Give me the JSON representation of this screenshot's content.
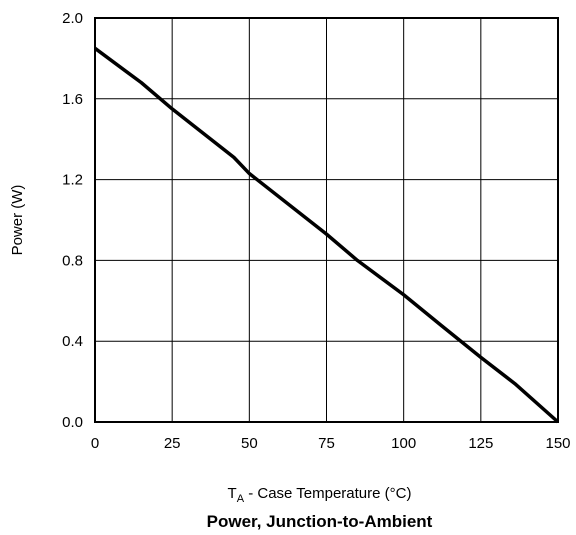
{
  "chart_data": {
    "type": "line",
    "title": "Power, Junction-to-Ambient",
    "xlabel": {
      "symbol": "T",
      "subscript": "A",
      "text": " - Case Temperature (°C)"
    },
    "ylabel": "Power (W)",
    "xlim": [
      0,
      150
    ],
    "ylim": [
      0,
      2.0
    ],
    "x_ticks": [
      "0",
      "25",
      "50",
      "75",
      "100",
      "125",
      "150"
    ],
    "y_ticks": [
      "0.0",
      "0.4",
      "0.8",
      "1.2",
      "1.6",
      "2.0"
    ],
    "grid": true,
    "legend": "none",
    "series": [
      {
        "x": [
          0,
          15,
          25,
          45,
          50,
          75,
          85,
          100,
          112,
          125,
          136,
          150
        ],
        "y": [
          1.85,
          1.68,
          1.55,
          1.31,
          1.23,
          0.93,
          0.8,
          0.63,
          0.48,
          0.32,
          0.19,
          0.0
        ],
        "color": "#000000"
      }
    ]
  }
}
